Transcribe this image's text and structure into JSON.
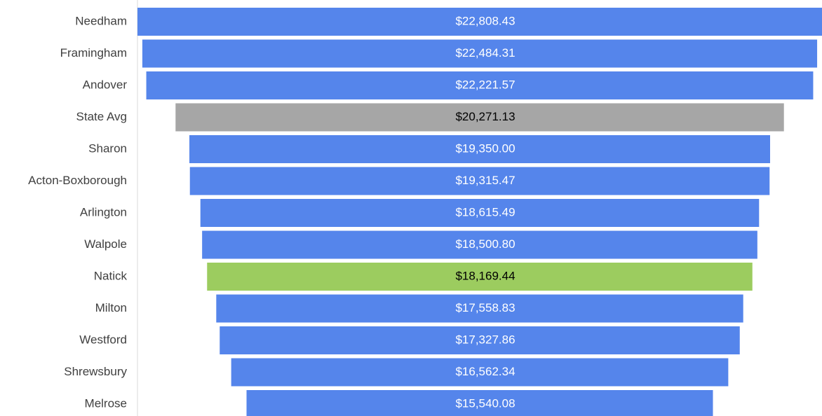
{
  "chart_data": {
    "type": "funnel",
    "categories": [
      "Needham",
      "Framingham",
      "Andover",
      "State Avg",
      "Sharon",
      "Acton-Boxborough",
      "Arlington",
      "Walpole",
      "Natick",
      "Milton",
      "Westford",
      "Shrewsbury",
      "Melrose"
    ],
    "values": [
      22808.43,
      22484.31,
      22221.57,
      20271.13,
      19350.0,
      19315.47,
      18615.49,
      18500.8,
      18169.44,
      17558.83,
      17327.86,
      16562.34,
      15540.08
    ],
    "value_labels": [
      "$22,808.43",
      "$22,484.31",
      "$22,221.57",
      "$20,271.13",
      "$19,350.00",
      "$19,315.47",
      "$18,615.49",
      "$18,500.80",
      "$18,169.44",
      "$17,558.83",
      "$17,327.86",
      "$16,562.34",
      "$15,540.08"
    ],
    "colors": [
      "#5585eb",
      "#5585eb",
      "#5585eb",
      "#a6a6a6",
      "#5585eb",
      "#5585eb",
      "#5585eb",
      "#5585eb",
      "#9ccc5f",
      "#5585eb",
      "#5585eb",
      "#5585eb",
      "#5585eb"
    ],
    "label_colors": [
      "#ffffff",
      "#ffffff",
      "#ffffff",
      "#000000",
      "#ffffff",
      "#ffffff",
      "#ffffff",
      "#ffffff",
      "#000000",
      "#ffffff",
      "#ffffff",
      "#ffffff",
      "#ffffff"
    ]
  }
}
